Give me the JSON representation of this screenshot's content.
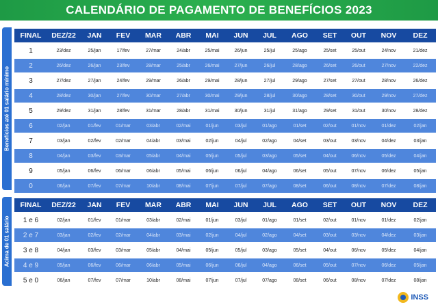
{
  "title": "CALENDÁRIO DE PAGAMENTO DE BENEFÍCIOS 2023",
  "columns": [
    "FINAL",
    "DEZ/22",
    "JAN",
    "FEV",
    "MAR",
    "ABR",
    "MAI",
    "JUN",
    "JUL",
    "AGO",
    "SET",
    "OUT",
    "NOV",
    "DEZ"
  ],
  "section1": {
    "side_label": "Benefícios até 01 salário mínimo",
    "rows": [
      [
        "1",
        "23/dez",
        "25/jan",
        "17/fev",
        "27/mar",
        "24/abr",
        "25/mai",
        "26/jun",
        "25/jul",
        "25/ago",
        "25/set",
        "25/out",
        "24/nov",
        "21/dez"
      ],
      [
        "2",
        "26/dez",
        "26/jan",
        "23/fev",
        "28/mar",
        "25/abr",
        "26/mai",
        "27/jun",
        "26/jul",
        "28/ago",
        "26/set",
        "26/out",
        "27/nov",
        "22/dez"
      ],
      [
        "3",
        "27/dez",
        "27/jan",
        "24/fev",
        "29/mar",
        "26/abr",
        "29/mai",
        "28/jun",
        "27/jul",
        "29/ago",
        "27/set",
        "27/out",
        "28/nov",
        "26/dez"
      ],
      [
        "4",
        "28/dez",
        "30/jan",
        "27/fev",
        "30/mar",
        "27/abr",
        "30/mai",
        "29/jun",
        "28/jul",
        "30/ago",
        "28/set",
        "30/out",
        "29/nov",
        "27/dez"
      ],
      [
        "5",
        "29/dez",
        "31/jan",
        "28/fev",
        "31/mar",
        "28/abr",
        "31/mai",
        "30/jun",
        "31/jul",
        "31/ago",
        "29/set",
        "31/out",
        "30/nov",
        "28/dez"
      ],
      [
        "6",
        "02/jan",
        "01/fev",
        "01/mar",
        "03/abr",
        "02/mai",
        "01/jun",
        "03/jul",
        "01/ago",
        "01/set",
        "02/out",
        "01/nov",
        "01/dez",
        "02/jan"
      ],
      [
        "7",
        "03/jan",
        "02/fev",
        "02/mar",
        "04/abr",
        "03/mai",
        "02/jun",
        "04/jul",
        "02/ago",
        "04/set",
        "03/out",
        "03/nov",
        "04/dez",
        "03/jan"
      ],
      [
        "8",
        "04/jan",
        "03/fev",
        "03/mar",
        "05/abr",
        "04/mai",
        "05/jun",
        "05/jul",
        "03/ago",
        "05/set",
        "04/out",
        "06/nov",
        "05/dez",
        "04/jan"
      ],
      [
        "9",
        "05/jan",
        "06/fev",
        "06/mar",
        "06/abr",
        "05/mai",
        "06/jun",
        "06/jul",
        "04/ago",
        "06/set",
        "05/out",
        "07/nov",
        "06/dez",
        "05/jan"
      ],
      [
        "0",
        "06/jan",
        "07/fev",
        "07/mar",
        "10/abr",
        "08/mai",
        "07/jun",
        "07/jul",
        "07/ago",
        "08/set",
        "06/out",
        "08/nov",
        "07/dez",
        "08/jan"
      ]
    ]
  },
  "section2": {
    "side_label": "Acima de 01 salário",
    "rows": [
      [
        "1 e 6",
        "02/jan",
        "01/fev",
        "01/mar",
        "03/abr",
        "02/mai",
        "01/jun",
        "03/jul",
        "01/ago",
        "01/set",
        "02/out",
        "01/nov",
        "01/dez",
        "02/jan"
      ],
      [
        "2 e 7",
        "03/jan",
        "02/fev",
        "02/mar",
        "04/abr",
        "03/mai",
        "02/jun",
        "04/jul",
        "02/ago",
        "04/set",
        "03/out",
        "03/nov",
        "04/dez",
        "03/jan"
      ],
      [
        "3 e 8",
        "04/jan",
        "03/fev",
        "03/mar",
        "05/abr",
        "04/mai",
        "05/jun",
        "05/jul",
        "03/ago",
        "05/set",
        "04/out",
        "06/nov",
        "05/dez",
        "04/jan"
      ],
      [
        "4 e 9",
        "05/jan",
        "06/fev",
        "06/mar",
        "06/abr",
        "05/mai",
        "06/jun",
        "06/jul",
        "04/ago",
        "06/set",
        "05/out",
        "07/nov",
        "06/dez",
        "05/jan"
      ],
      [
        "5 e 0",
        "06/jan",
        "07/fev",
        "07/mar",
        "10/abr",
        "08/mai",
        "07/jun",
        "07/jul",
        "07/ago",
        "08/set",
        "06/out",
        "08/nov",
        "07/dez",
        "08/jan"
      ]
    ]
  },
  "logo": {
    "text": "INSS",
    "icon": "inss-logo-icon"
  },
  "colors": {
    "green": "#1e9a45",
    "header_blue": "#174aa1",
    "row_blue": "#4f86dc",
    "side_blue": "#2a6fd1"
  }
}
